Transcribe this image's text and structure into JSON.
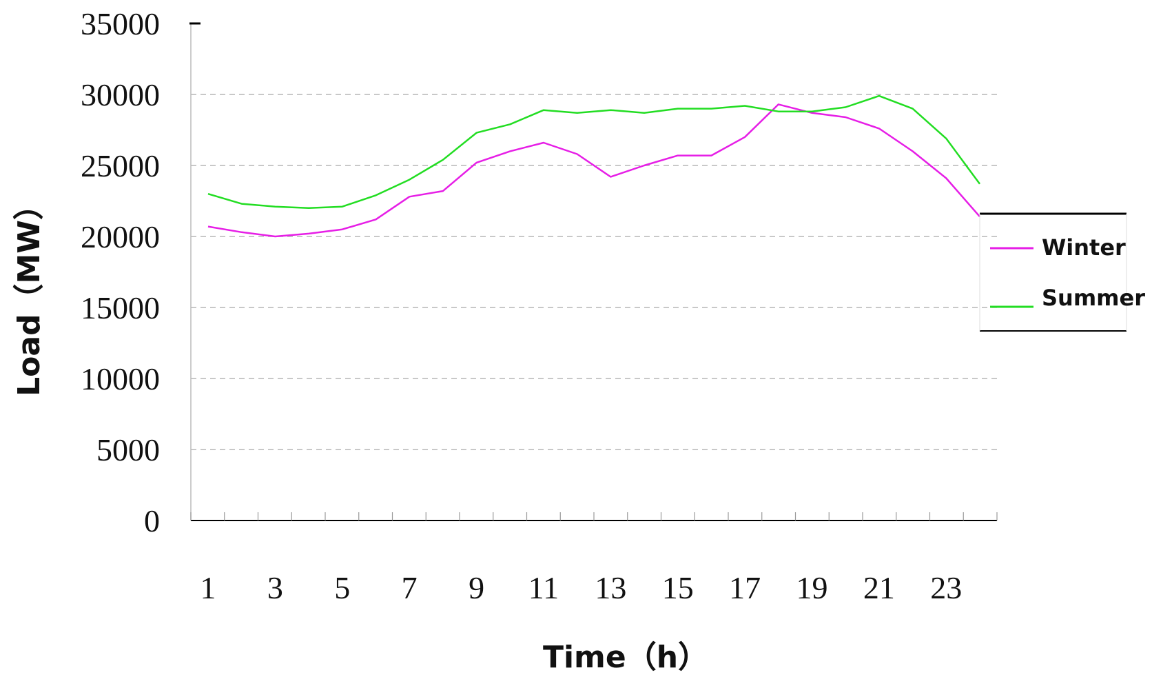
{
  "chart_data": {
    "type": "line",
    "xlabel": "Time（h）",
    "ylabel": "Load（MW）",
    "x": [
      1,
      2,
      3,
      4,
      5,
      6,
      7,
      8,
      9,
      10,
      11,
      12,
      13,
      14,
      15,
      16,
      17,
      18,
      19,
      20,
      21,
      22,
      23,
      24
    ],
    "x_tick_labels": [
      "1",
      "3",
      "5",
      "7",
      "9",
      "11",
      "13",
      "15",
      "17",
      "19",
      "21",
      "23"
    ],
    "y_tick_labels": [
      "0",
      "5000",
      "10000",
      "15000",
      "20000",
      "25000",
      "30000",
      "35000"
    ],
    "ylim": [
      0,
      35000
    ],
    "grid": "horizontal dashed",
    "legend_position": "right",
    "series": [
      {
        "name": "Winter",
        "color": "#e61ee6",
        "values": [
          20700,
          20300,
          20000,
          20200,
          20500,
          21200,
          22800,
          23200,
          25200,
          26000,
          26600,
          25800,
          24200,
          25000,
          25700,
          25700,
          27000,
          29300,
          28700,
          28400,
          27600,
          26000,
          24100,
          21400
        ]
      },
      {
        "name": "Summer",
        "color": "#22dd22",
        "values": [
          23000,
          22300,
          22100,
          22000,
          22100,
          22900,
          24000,
          25400,
          27300,
          27900,
          28900,
          28700,
          28900,
          28700,
          29000,
          29000,
          29200,
          28800,
          28800,
          29100,
          29900,
          29000,
          26900,
          23700
        ]
      }
    ]
  }
}
